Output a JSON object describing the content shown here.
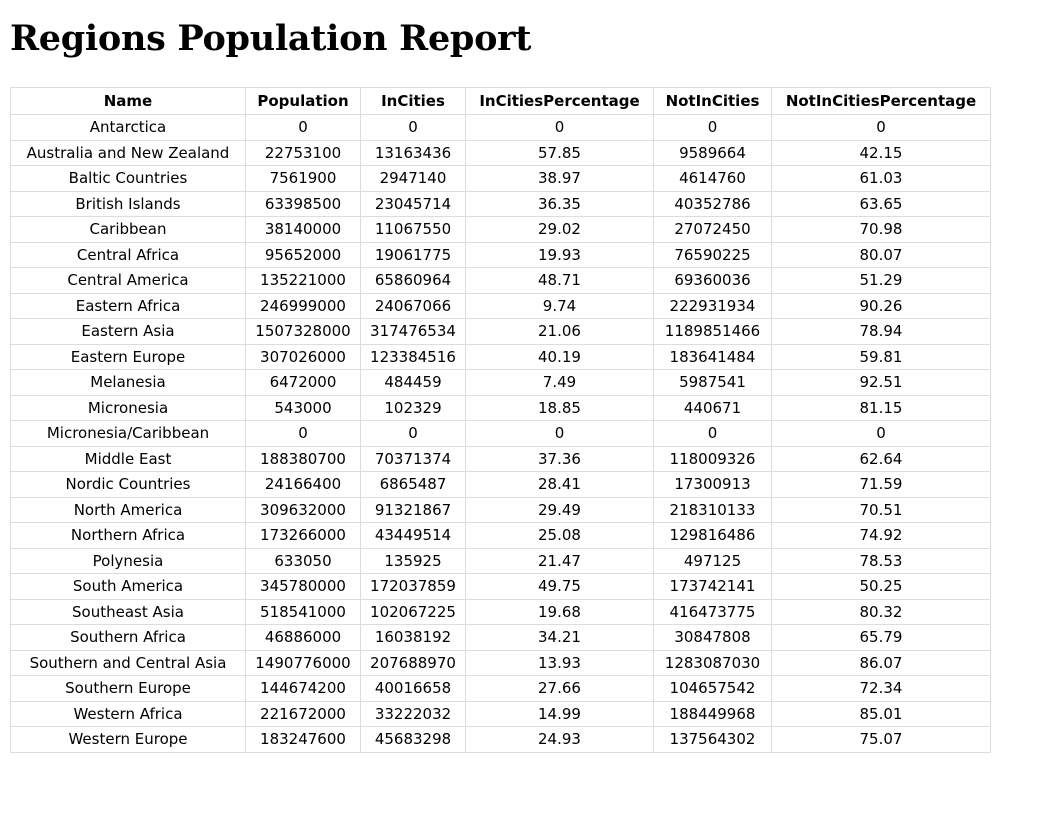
{
  "page": {
    "title": "Regions Population Report"
  },
  "table": {
    "headers": [
      "Name",
      "Population",
      "InCities",
      "InCitiesPercentage",
      "NotInCities",
      "NotInCitiesPercentage"
    ],
    "rows": [
      [
        "Antarctica",
        "0",
        "0",
        "0",
        "0",
        "0"
      ],
      [
        "Australia and New Zealand",
        "22753100",
        "13163436",
        "57.85",
        "9589664",
        "42.15"
      ],
      [
        "Baltic Countries",
        "7561900",
        "2947140",
        "38.97",
        "4614760",
        "61.03"
      ],
      [
        "British Islands",
        "63398500",
        "23045714",
        "36.35",
        "40352786",
        "63.65"
      ],
      [
        "Caribbean",
        "38140000",
        "11067550",
        "29.02",
        "27072450",
        "70.98"
      ],
      [
        "Central Africa",
        "95652000",
        "19061775",
        "19.93",
        "76590225",
        "80.07"
      ],
      [
        "Central America",
        "135221000",
        "65860964",
        "48.71",
        "69360036",
        "51.29"
      ],
      [
        "Eastern Africa",
        "246999000",
        "24067066",
        "9.74",
        "222931934",
        "90.26"
      ],
      [
        "Eastern Asia",
        "1507328000",
        "317476534",
        "21.06",
        "1189851466",
        "78.94"
      ],
      [
        "Eastern Europe",
        "307026000",
        "123384516",
        "40.19",
        "183641484",
        "59.81"
      ],
      [
        "Melanesia",
        "6472000",
        "484459",
        "7.49",
        "5987541",
        "92.51"
      ],
      [
        "Micronesia",
        "543000",
        "102329",
        "18.85",
        "440671",
        "81.15"
      ],
      [
        "Micronesia/Caribbean",
        "0",
        "0",
        "0",
        "0",
        "0"
      ],
      [
        "Middle East",
        "188380700",
        "70371374",
        "37.36",
        "118009326",
        "62.64"
      ],
      [
        "Nordic Countries",
        "24166400",
        "6865487",
        "28.41",
        "17300913",
        "71.59"
      ],
      [
        "North America",
        "309632000",
        "91321867",
        "29.49",
        "218310133",
        "70.51"
      ],
      [
        "Northern Africa",
        "173266000",
        "43449514",
        "25.08",
        "129816486",
        "74.92"
      ],
      [
        "Polynesia",
        "633050",
        "135925",
        "21.47",
        "497125",
        "78.53"
      ],
      [
        "South America",
        "345780000",
        "172037859",
        "49.75",
        "173742141",
        "50.25"
      ],
      [
        "Southeast Asia",
        "518541000",
        "102067225",
        "19.68",
        "416473775",
        "80.32"
      ],
      [
        "Southern Africa",
        "46886000",
        "16038192",
        "34.21",
        "30847808",
        "65.79"
      ],
      [
        "Southern and Central Asia",
        "1490776000",
        "207688970",
        "13.93",
        "1283087030",
        "86.07"
      ],
      [
        "Southern Europe",
        "144674200",
        "40016658",
        "27.66",
        "104657542",
        "72.34"
      ],
      [
        "Western Africa",
        "221672000",
        "33222032",
        "14.99",
        "188449968",
        "85.01"
      ],
      [
        "Western Europe",
        "183247600",
        "45683298",
        "24.93",
        "137564302",
        "75.07"
      ]
    ]
  }
}
